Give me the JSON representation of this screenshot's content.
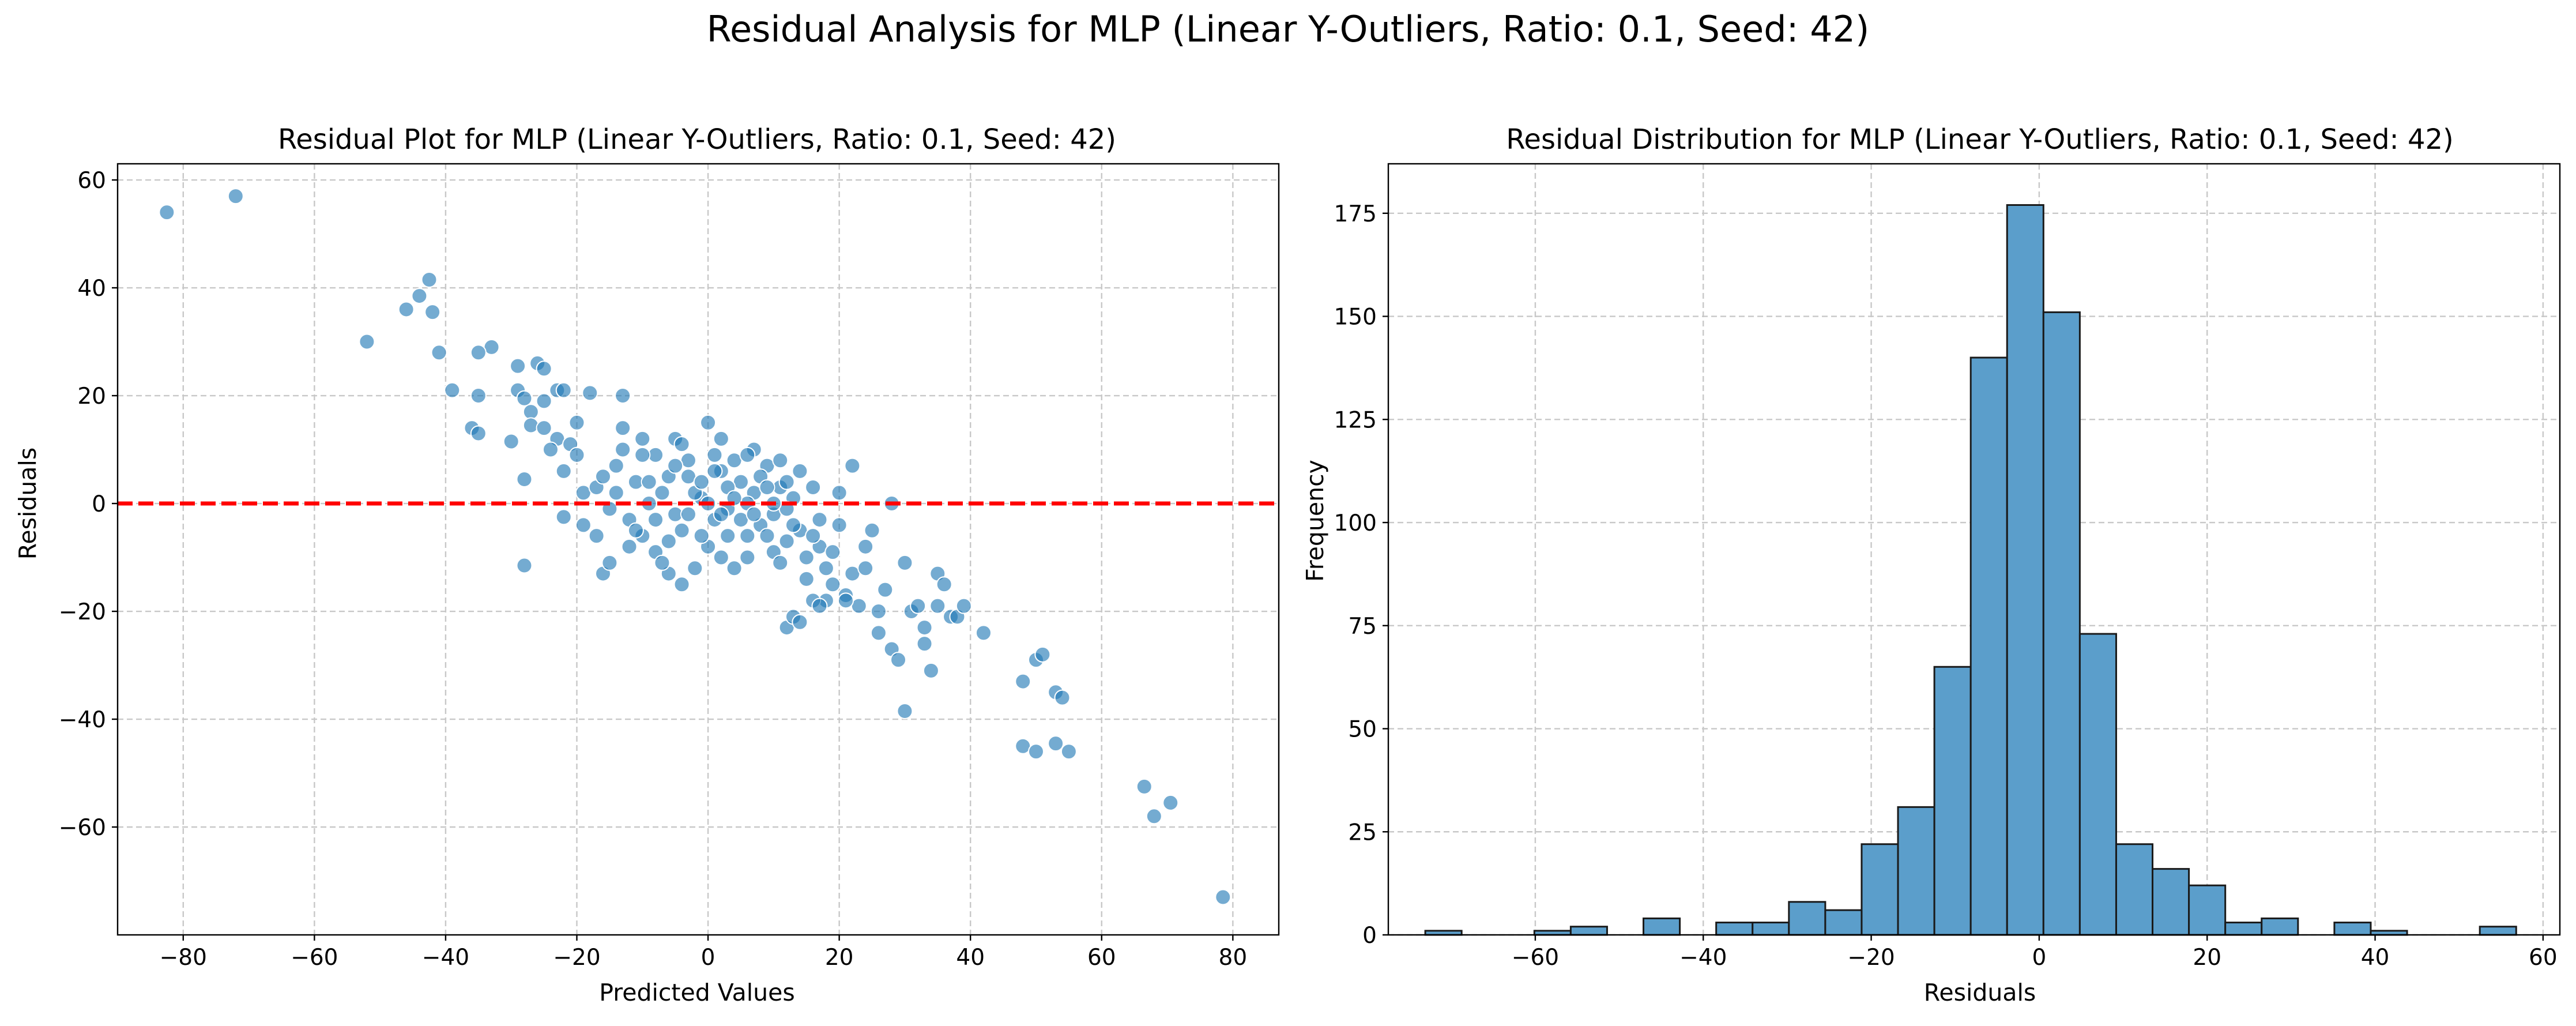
{
  "figure": {
    "suptitle": "Residual Analysis for MLP (Linear Y-Outliers, Ratio: 0.1, Seed: 42)"
  },
  "chart_data": [
    {
      "type": "scatter",
      "title": "Residual Plot for MLP (Linear Y-Outliers, Ratio: 0.1, Seed: 42)",
      "xlabel": "Predicted Values",
      "ylabel": "Residuals",
      "xlim": [
        -90,
        87
      ],
      "ylim": [
        -80,
        63
      ],
      "xticks": [
        -80,
        -60,
        -40,
        -20,
        0,
        20,
        40,
        60,
        80
      ],
      "yticks": [
        -60,
        -40,
        -20,
        0,
        20,
        40,
        60
      ],
      "grid": true,
      "point_color": "#1f77b4",
      "reference_line": {
        "y": 0,
        "color": "#ff0000",
        "style": "dashed"
      },
      "cluster_description": "dense cloud of several hundred points centered near (0, 0), spread roughly x in [-15, 20] and y in [-15, 10]",
      "points": [
        [
          -82.5,
          54
        ],
        [
          -72,
          57
        ],
        [
          -42.5,
          41.5
        ],
        [
          -44,
          38.5
        ],
        [
          -46,
          36
        ],
        [
          -42,
          35.5
        ],
        [
          -41,
          28
        ],
        [
          -52,
          30
        ],
        [
          -33,
          29
        ],
        [
          -35,
          28
        ],
        [
          -39,
          21
        ],
        [
          -35,
          20
        ],
        [
          -36,
          14
        ],
        [
          -35,
          13
        ],
        [
          -30,
          11.5
        ],
        [
          -29,
          25.5
        ],
        [
          -29,
          21
        ],
        [
          -28,
          19.5
        ],
        [
          -27,
          17
        ],
        [
          -26,
          26
        ],
        [
          -25,
          25
        ],
        [
          -25,
          19
        ],
        [
          -23,
          21
        ],
        [
          -22,
          21
        ],
        [
          -27,
          14.5
        ],
        [
          -25,
          14
        ],
        [
          -23,
          12
        ],
        [
          -24,
          10
        ],
        [
          -21,
          11
        ],
        [
          -20,
          15
        ],
        [
          -20,
          9
        ],
        [
          -18,
          20.5
        ],
        [
          -28,
          4.5
        ],
        [
          -22,
          6
        ],
        [
          -22,
          -2.5
        ],
        [
          -19,
          -4
        ],
        [
          -19,
          2
        ],
        [
          -17,
          3
        ],
        [
          -16,
          -13
        ],
        [
          -28,
          -11.5
        ],
        [
          -15,
          -11
        ],
        [
          -13,
          20
        ],
        [
          -13,
          14
        ],
        [
          -13,
          10
        ],
        [
          -10,
          12
        ],
        [
          -8,
          9
        ],
        [
          -5,
          12
        ],
        [
          0,
          15
        ],
        [
          -12,
          -3
        ],
        [
          -10,
          -6
        ],
        [
          -8,
          -9
        ],
        [
          -6,
          -13
        ],
        [
          -4,
          -15
        ],
        [
          -2,
          -12
        ],
        [
          -11,
          4
        ],
        [
          -7,
          2
        ],
        [
          -5,
          -2
        ],
        [
          -3,
          5
        ],
        [
          -1,
          1
        ],
        [
          1,
          -3
        ],
        [
          2,
          6
        ],
        [
          3,
          -1
        ],
        [
          5,
          4
        ],
        [
          6,
          -6
        ],
        [
          7,
          2
        ],
        [
          8,
          -4
        ],
        [
          9,
          7
        ],
        [
          10,
          -2
        ],
        [
          11,
          3
        ],
        [
          12,
          -7
        ],
        [
          -9,
          0
        ],
        [
          -6,
          5
        ],
        [
          -4,
          -5
        ],
        [
          0,
          -8
        ],
        [
          2,
          -10
        ],
        [
          4,
          -12
        ],
        [
          6,
          0
        ],
        [
          8,
          5
        ],
        [
          10,
          -9
        ],
        [
          13,
          1
        ],
        [
          14,
          -5
        ],
        [
          15,
          -10
        ],
        [
          16,
          3
        ],
        [
          17,
          -8
        ],
        [
          18,
          -12
        ],
        [
          19,
          -15
        ],
        [
          20,
          -4
        ],
        [
          20,
          2
        ],
        [
          21,
          -17
        ],
        [
          22,
          -13
        ],
        [
          22,
          7
        ],
        [
          -3,
          8
        ],
        [
          1,
          9
        ],
        [
          4,
          8
        ],
        [
          7,
          10
        ],
        [
          11,
          8
        ],
        [
          14,
          6
        ],
        [
          -14,
          2
        ],
        [
          -12,
          -8
        ],
        [
          -7,
          -11
        ],
        [
          -1,
          -6
        ],
        [
          3,
          3
        ],
        [
          5,
          -3
        ],
        [
          9,
          -6
        ],
        [
          12,
          -1
        ],
        [
          15,
          -14
        ],
        [
          17,
          -3
        ],
        [
          18,
          -18
        ],
        [
          6,
          -10
        ],
        [
          -2,
          2
        ],
        [
          0,
          0
        ],
        [
          2,
          -2
        ],
        [
          -5,
          7
        ],
        [
          23,
          -19
        ],
        [
          24,
          -12
        ],
        [
          25,
          -5
        ],
        [
          26,
          -20
        ],
        [
          26,
          -24
        ],
        [
          27,
          -16
        ],
        [
          28,
          0
        ],
        [
          28,
          -27
        ],
        [
          29,
          -29
        ],
        [
          30,
          -38.5
        ],
        [
          30,
          -11
        ],
        [
          31,
          -20
        ],
        [
          32,
          -19
        ],
        [
          33,
          -23
        ],
        [
          33,
          -26
        ],
        [
          34,
          -31
        ],
        [
          35,
          -19
        ],
        [
          35,
          -13
        ],
        [
          36,
          -15
        ],
        [
          37,
          -21
        ],
        [
          38,
          -21
        ],
        [
          39,
          -19
        ],
        [
          42,
          -24
        ],
        [
          48,
          -33
        ],
        [
          48,
          -45
        ],
        [
          50,
          -46
        ],
        [
          50,
          -29
        ],
        [
          51,
          -28
        ],
        [
          53,
          -35
        ],
        [
          53,
          -44.5
        ],
        [
          54,
          -36
        ],
        [
          55,
          -46
        ],
        [
          66.5,
          -52.5
        ],
        [
          68,
          -58
        ],
        [
          70.5,
          -55.5
        ],
        [
          78.5,
          -73
        ],
        [
          12,
          -23
        ],
        [
          13,
          -21
        ],
        [
          14,
          -22
        ],
        [
          16,
          -18
        ],
        [
          17,
          -19
        ],
        [
          21,
          -18
        ],
        [
          -16,
          5
        ],
        [
          -15,
          -1
        ],
        [
          -11,
          -5
        ],
        [
          -9,
          4
        ],
        [
          -8,
          -3
        ],
        [
          -6,
          -7
        ],
        [
          -3,
          -2
        ],
        [
          -1,
          4
        ],
        [
          1,
          6
        ],
        [
          3,
          -6
        ],
        [
          4,
          1
        ],
        [
          7,
          -2
        ],
        [
          10,
          0
        ],
        [
          11,
          -11
        ],
        [
          13,
          -4
        ],
        [
          16,
          -6
        ],
        [
          19,
          -9
        ],
        [
          24,
          -8
        ],
        [
          -17,
          -6
        ],
        [
          -14,
          7
        ],
        [
          -10,
          9
        ],
        [
          -4,
          11
        ],
        [
          2,
          12
        ],
        [
          6,
          9
        ],
        [
          9,
          3
        ],
        [
          12,
          4
        ]
      ]
    },
    {
      "type": "bar",
      "subtype": "histogram",
      "title": "Residual Distribution for MLP (Linear Y-Outliers, Ratio: 0.1, Seed: 42)",
      "xlabel": "Residuals",
      "ylabel": "Frequency",
      "xlim": [
        -77.5,
        62
      ],
      "ylim": [
        0,
        187
      ],
      "xticks": [
        -60,
        -40,
        -20,
        0,
        20,
        40,
        60
      ],
      "yticks": [
        0,
        25,
        50,
        75,
        100,
        125,
        150,
        175
      ],
      "grid": true,
      "bar_color": "#5b9ecb",
      "bin_start": -73.1,
      "bin_width": 4.33,
      "values": [
        1,
        0,
        0,
        1,
        2,
        0,
        4,
        0,
        3,
        3,
        8,
        6,
        22,
        31,
        65,
        140,
        177,
        151,
        73,
        22,
        16,
        12,
        3,
        4,
        0,
        3,
        1,
        0,
        0,
        2
      ]
    }
  ]
}
